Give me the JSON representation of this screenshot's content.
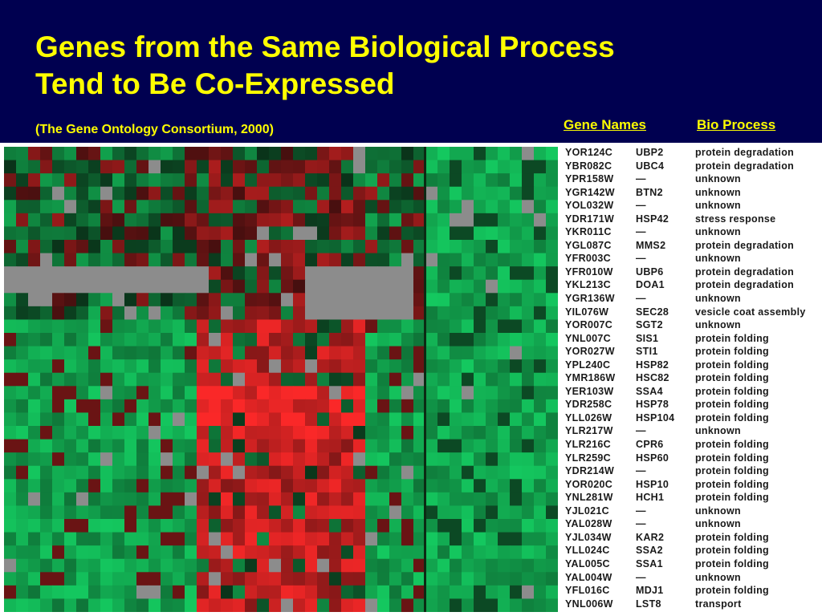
{
  "slide": {
    "title_line1": "Genes from the Same Biological Process",
    "title_line2": "Tend to Be Co-Expressed",
    "citation": "(The Gene Ontology Consortium, 2000)",
    "header_gene_names": "Gene Names",
    "header_bio_process": "Bio Process"
  },
  "colors": {
    "background": "#000050",
    "title": "#ffff00",
    "green_high": "#16c05a",
    "red_high": "#f02828",
    "missing": "#8c8c8c"
  },
  "genes": [
    {
      "orf": "YOR124C",
      "name": "UBP2",
      "process": "protein degradation"
    },
    {
      "orf": "YBR082C",
      "name": "UBC4",
      "process": "protein degradation"
    },
    {
      "orf": "YPR158W",
      "name": "—",
      "process": "unknown"
    },
    {
      "orf": "YGR142W",
      "name": "BTN2",
      "process": "unknown"
    },
    {
      "orf": "YOL032W",
      "name": "—",
      "process": "unknown"
    },
    {
      "orf": "YDR171W",
      "name": "HSP42",
      "process": "stress response"
    },
    {
      "orf": "YKR011C",
      "name": "—",
      "process": "unknown"
    },
    {
      "orf": "YGL087C",
      "name": "MMS2",
      "process": "protein degradation"
    },
    {
      "orf": "YFR003C",
      "name": "—",
      "process": "unknown"
    },
    {
      "orf": "YFR010W",
      "name": "UBP6",
      "process": "protein degradation"
    },
    {
      "orf": "YKL213C",
      "name": "DOA1",
      "process": "protein degradation"
    },
    {
      "orf": "YGR136W",
      "name": "—",
      "process": "unknown"
    },
    {
      "orf": "YIL076W",
      "name": "SEC28",
      "process": "vesicle coat assembly"
    },
    {
      "orf": "YOR007C",
      "name": "SGT2",
      "process": "unknown"
    },
    {
      "orf": "YNL007C",
      "name": "SIS1",
      "process": "protein folding"
    },
    {
      "orf": "YOR027W",
      "name": "STI1",
      "process": "protein folding"
    },
    {
      "orf": "YPL240C",
      "name": "HSP82",
      "process": "protein folding"
    },
    {
      "orf": "YMR186W",
      "name": "HSC82",
      "process": "protein folding"
    },
    {
      "orf": "YER103W",
      "name": "SSA4",
      "process": "protein folding"
    },
    {
      "orf": "YDR258C",
      "name": "HSP78",
      "process": "protein folding"
    },
    {
      "orf": "YLL026W",
      "name": "HSP104",
      "process": "protein folding"
    },
    {
      "orf": "YLR217W",
      "name": "—",
      "process": "unknown"
    },
    {
      "orf": "YLR216C",
      "name": "CPR6",
      "process": "protein folding"
    },
    {
      "orf": "YLR259C",
      "name": "HSP60",
      "process": "protein folding"
    },
    {
      "orf": "YDR214W",
      "name": "—",
      "process": "protein folding"
    },
    {
      "orf": "YOR020C",
      "name": "HSP10",
      "process": "protein folding"
    },
    {
      "orf": "YNL281W",
      "name": "HCH1",
      "process": "protein folding"
    },
    {
      "orf": "YJL021C",
      "name": "—",
      "process": "unknown"
    },
    {
      "orf": "YAL028W",
      "name": "—",
      "process": "unknown"
    },
    {
      "orf": "YJL034W",
      "name": "KAR2",
      "process": "protein folding"
    },
    {
      "orf": "YLL024C",
      "name": "SSA2",
      "process": "protein folding"
    },
    {
      "orf": "YAL005C",
      "name": "SSA1",
      "process": "protein folding"
    },
    {
      "orf": "YAL004W",
      "name": "—",
      "process": "unknown"
    },
    {
      "orf": "YFL016C",
      "name": "MDJ1",
      "process": "protein folding"
    },
    {
      "orf": "YNL006W",
      "name": "LST8",
      "process": "transport"
    }
  ]
}
